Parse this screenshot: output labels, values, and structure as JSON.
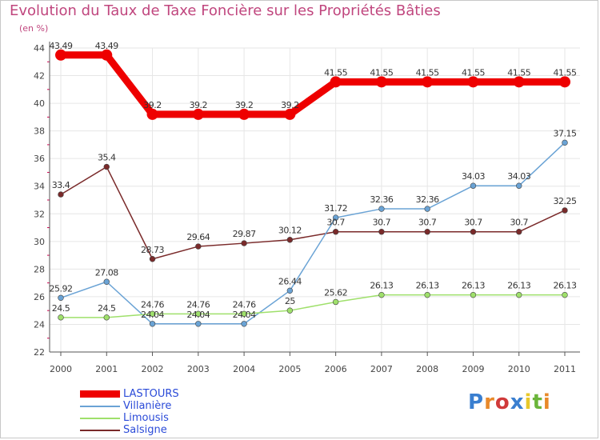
{
  "title": "Evolution du Taux de Taxe Foncière sur les Propriétés Bâties",
  "subtitle": "(en %)",
  "logo": "Proxiti",
  "colors": {
    "title": "#c0467e",
    "legend_text": "#2b4bd8",
    "axis": "#555555",
    "grid": "#e6e6e6",
    "tick_red": "#d0004f"
  },
  "chart_data": {
    "type": "line",
    "title": "Evolution du Taux de Taxe Foncière sur les Propriétés Bâties",
    "ylabel": "(en %)",
    "xlabel": "",
    "x": [
      "2000",
      "2001",
      "2002",
      "2003",
      "2004",
      "2005",
      "2006",
      "2007",
      "2008",
      "2009",
      "2010",
      "2011"
    ],
    "ylim": [
      22,
      44
    ],
    "yticks": [
      "22",
      "24",
      "26",
      "28",
      "30",
      "32",
      "34",
      "36",
      "38",
      "40",
      "42",
      "44"
    ],
    "grid": true,
    "legend_position": "bottom-left",
    "series": [
      {
        "name": "LASTOURS",
        "color": "#ee0000",
        "values": [
          43.49,
          43.49,
          39.2,
          39.2,
          39.2,
          39.2,
          41.55,
          41.55,
          41.55,
          41.55,
          41.55,
          41.55
        ],
        "labels": [
          "43.49",
          "43.49",
          "39.2",
          "39.2",
          "39.2",
          "39.2",
          "41.55",
          "41.55",
          "41.55",
          "41.55",
          "41.55",
          "41.55"
        ]
      },
      {
        "name": "Villanière",
        "color": "#6aa3d5",
        "values": [
          25.92,
          27.08,
          24.04,
          24.04,
          24.04,
          26.44,
          31.72,
          32.36,
          32.36,
          34.03,
          34.03,
          37.15
        ],
        "labels": [
          "25.92",
          "27.08",
          "24.04",
          "24.04",
          "24.04",
          "26.44",
          "31.72",
          "32.36",
          "32.36",
          "34.03",
          "34.03",
          "37.15"
        ]
      },
      {
        "name": "Limousis",
        "color": "#9fe06b",
        "values": [
          24.5,
          24.5,
          24.76,
          24.76,
          24.76,
          25,
          25.62,
          26.13,
          26.13,
          26.13,
          26.13,
          26.13
        ],
        "labels": [
          "24.5",
          "24.5",
          "24.76",
          "24.76",
          "24.76",
          "25",
          "25.62",
          "26.13",
          "26.13",
          "26.13",
          "26.13",
          "26.13"
        ]
      },
      {
        "name": "Salsigne",
        "color": "#7a2a2a",
        "values": [
          33.4,
          35.4,
          28.73,
          29.64,
          29.87,
          30.12,
          30.7,
          30.7,
          30.7,
          30.7,
          30.7,
          32.25
        ],
        "labels": [
          "33.4",
          "35.4",
          "28.73",
          "29.64",
          "29.87",
          "30.12",
          "30.7",
          "30.7",
          "30.7",
          "30.7",
          "30.7",
          "32.25"
        ]
      }
    ]
  }
}
